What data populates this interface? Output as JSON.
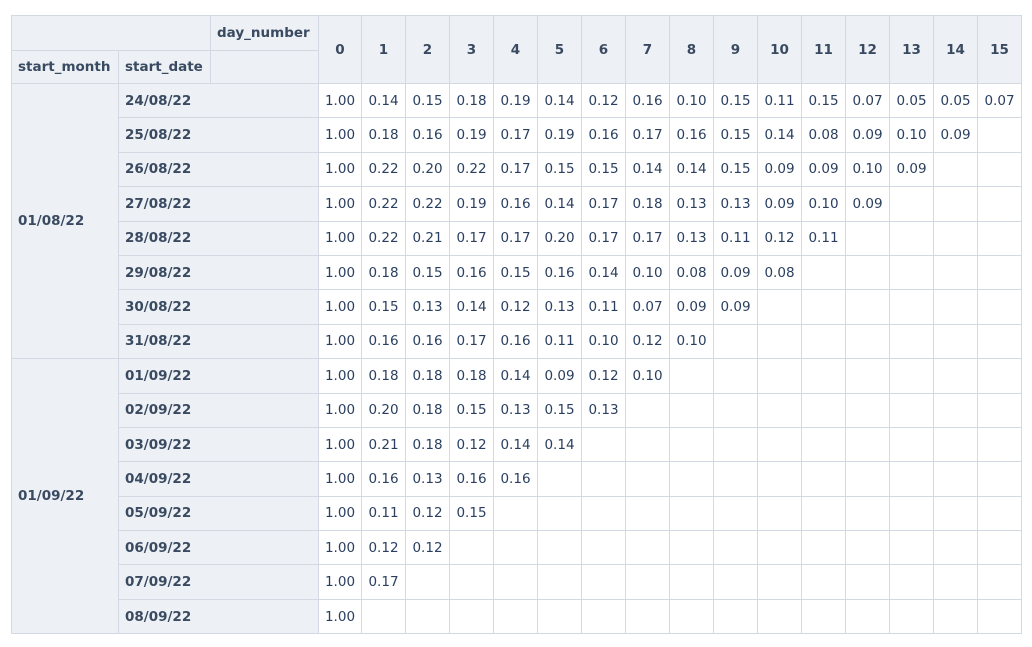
{
  "table": {
    "day_number_label": "day_number",
    "start_month_label": "start_month",
    "start_date_label": "start_date",
    "day_numbers": [
      "0",
      "1",
      "2",
      "3",
      "4",
      "5",
      "6",
      "7",
      "8",
      "9",
      "10",
      "11",
      "12",
      "13",
      "14",
      "15"
    ],
    "groups": [
      {
        "month": "01/08/22",
        "rows": [
          {
            "date": "24/08/22",
            "values": [
              "1.00",
              "0.14",
              "0.15",
              "0.18",
              "0.19",
              "0.14",
              "0.12",
              "0.16",
              "0.10",
              "0.15",
              "0.11",
              "0.15",
              "0.07",
              "0.05",
              "0.05",
              "0.07"
            ]
          },
          {
            "date": "25/08/22",
            "values": [
              "1.00",
              "0.18",
              "0.16",
              "0.19",
              "0.17",
              "0.19",
              "0.16",
              "0.17",
              "0.16",
              "0.15",
              "0.14",
              "0.08",
              "0.09",
              "0.10",
              "0.09",
              ""
            ]
          },
          {
            "date": "26/08/22",
            "values": [
              "1.00",
              "0.22",
              "0.20",
              "0.22",
              "0.17",
              "0.15",
              "0.15",
              "0.14",
              "0.14",
              "0.15",
              "0.09",
              "0.09",
              "0.10",
              "0.09",
              "",
              ""
            ]
          },
          {
            "date": "27/08/22",
            "values": [
              "1.00",
              "0.22",
              "0.22",
              "0.19",
              "0.16",
              "0.14",
              "0.17",
              "0.18",
              "0.13",
              "0.13",
              "0.09",
              "0.10",
              "0.09",
              "",
              "",
              ""
            ]
          },
          {
            "date": "28/08/22",
            "values": [
              "1.00",
              "0.22",
              "0.21",
              "0.17",
              "0.17",
              "0.20",
              "0.17",
              "0.17",
              "0.13",
              "0.11",
              "0.12",
              "0.11",
              "",
              "",
              "",
              ""
            ]
          },
          {
            "date": "29/08/22",
            "values": [
              "1.00",
              "0.18",
              "0.15",
              "0.16",
              "0.15",
              "0.16",
              "0.14",
              "0.10",
              "0.08",
              "0.09",
              "0.08",
              "",
              "",
              "",
              "",
              ""
            ]
          },
          {
            "date": "30/08/22",
            "values": [
              "1.00",
              "0.15",
              "0.13",
              "0.14",
              "0.12",
              "0.13",
              "0.11",
              "0.07",
              "0.09",
              "0.09",
              "",
              "",
              "",
              "",
              "",
              ""
            ]
          },
          {
            "date": "31/08/22",
            "values": [
              "1.00",
              "0.16",
              "0.16",
              "0.17",
              "0.16",
              "0.11",
              "0.10",
              "0.12",
              "0.10",
              "",
              "",
              "",
              "",
              "",
              "",
              ""
            ]
          }
        ]
      },
      {
        "month": "01/09/22",
        "rows": [
          {
            "date": "01/09/22",
            "values": [
              "1.00",
              "0.18",
              "0.18",
              "0.18",
              "0.14",
              "0.09",
              "0.12",
              "0.10",
              "",
              "",
              "",
              "",
              "",
              "",
              "",
              ""
            ]
          },
          {
            "date": "02/09/22",
            "values": [
              "1.00",
              "0.20",
              "0.18",
              "0.15",
              "0.13",
              "0.15",
              "0.13",
              "",
              "",
              "",
              "",
              "",
              "",
              "",
              "",
              ""
            ]
          },
          {
            "date": "03/09/22",
            "values": [
              "1.00",
              "0.21",
              "0.18",
              "0.12",
              "0.14",
              "0.14",
              "",
              "",
              "",
              "",
              "",
              "",
              "",
              "",
              "",
              ""
            ]
          },
          {
            "date": "04/09/22",
            "values": [
              "1.00",
              "0.16",
              "0.13",
              "0.16",
              "0.16",
              "",
              "",
              "",
              "",
              "",
              "",
              "",
              "",
              "",
              "",
              ""
            ]
          },
          {
            "date": "05/09/22",
            "values": [
              "1.00",
              "0.11",
              "0.12",
              "0.15",
              "",
              "",
              "",
              "",
              "",
              "",
              "",
              "",
              "",
              "",
              "",
              ""
            ]
          },
          {
            "date": "06/09/22",
            "values": [
              "1.00",
              "0.12",
              "0.12",
              "",
              "",
              "",
              "",
              "",
              "",
              "",
              "",
              "",
              "",
              "",
              "",
              ""
            ]
          },
          {
            "date": "07/09/22",
            "values": [
              "1.00",
              "0.17",
              "",
              "",
              "",
              "",
              "",
              "",
              "",
              "",
              "",
              "",
              "",
              "",
              "",
              ""
            ]
          },
          {
            "date": "08/09/22",
            "values": [
              "1.00",
              "",
              "",
              "",
              "",
              "",
              "",
              "",
              "",
              "",
              "",
              "",
              "",
              "",
              "",
              ""
            ]
          }
        ]
      }
    ]
  }
}
